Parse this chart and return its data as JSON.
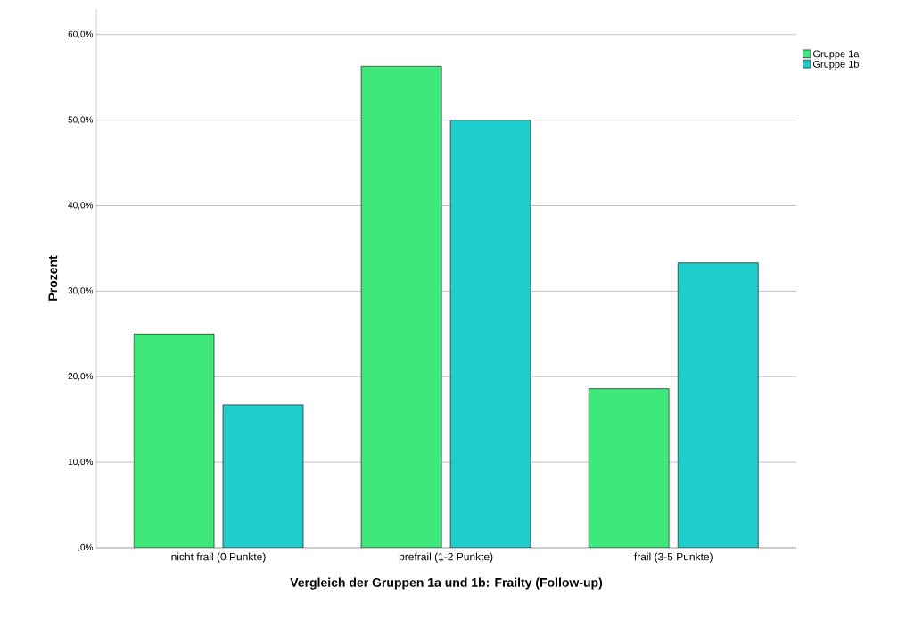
{
  "chart_data": {
    "type": "bar",
    "xlabel": "Vergleich der Gruppen 1a und 1b: Frailty (Follow-up)",
    "ylabel": "Prozent",
    "categories": [
      "nicht frail (0 Punkte)",
      "prefrail (1-2 Punkte)",
      "frail (3-5 Punkte)"
    ],
    "series": [
      {
        "name": "Gruppe 1a",
        "color": "#3ee87b",
        "values": [
          25.0,
          56.3,
          18.6
        ]
      },
      {
        "name": "Gruppe 1b",
        "color": "#1fcdcd",
        "values": [
          16.7,
          50.0,
          33.3
        ]
      }
    ],
    "ylim": [
      0,
      63
    ],
    "yticks": [
      {
        "value": 0,
        "label": ",0%"
      },
      {
        "value": 10,
        "label": "10,0%"
      },
      {
        "value": 20,
        "label": "20,0%"
      },
      {
        "value": 30,
        "label": "30,0%"
      },
      {
        "value": 40,
        "label": "40,0%"
      },
      {
        "value": 50,
        "label": "50,0%"
      },
      {
        "value": 60,
        "label": "60,0%"
      }
    ],
    "grid": "y",
    "legend": "top right"
  }
}
